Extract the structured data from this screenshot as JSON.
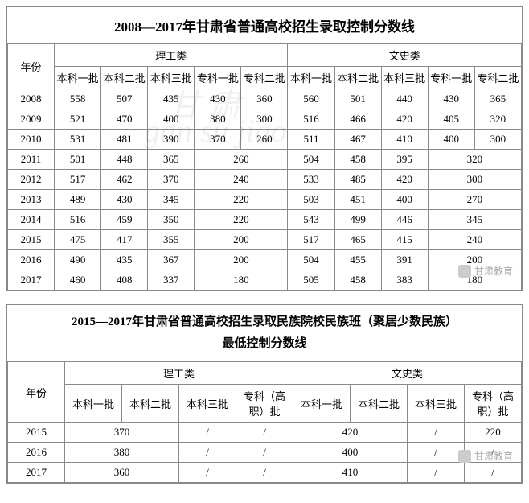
{
  "table1": {
    "title": "2008—2017年甘肃省普通高校招生录取控制分数线",
    "year_label": "年份",
    "group_sci": "理工类",
    "group_art": "文史类",
    "cols": [
      "本科一批",
      "本科二批",
      "本科三批",
      "专科一批",
      "专科二批"
    ],
    "rows": [
      {
        "year": "2008",
        "sci": [
          "558",
          "507",
          "435",
          "430",
          "360"
        ],
        "art": [
          "560",
          "501",
          "440",
          "430",
          "365"
        ]
      },
      {
        "year": "2009",
        "sci": [
          "521",
          "470",
          "400",
          "380",
          "300"
        ],
        "art": [
          "516",
          "466",
          "420",
          "405",
          "320"
        ]
      },
      {
        "year": "2010",
        "sci": [
          "531",
          "481",
          "390",
          "370",
          "260"
        ],
        "art": [
          "511",
          "467",
          "410",
          "400",
          "300"
        ]
      },
      {
        "year": "2011",
        "sci": [
          "501",
          "448",
          "365"
        ],
        "sci_m": "260",
        "art": [
          "504",
          "458",
          "395"
        ],
        "art_m": "320"
      },
      {
        "year": "2012",
        "sci": [
          "517",
          "462",
          "370"
        ],
        "sci_m": "240",
        "art": [
          "533",
          "485",
          "420"
        ],
        "art_m": "300"
      },
      {
        "year": "2013",
        "sci": [
          "489",
          "430",
          "345"
        ],
        "sci_m": "220",
        "art": [
          "503",
          "451",
          "400"
        ],
        "art_m": "270"
      },
      {
        "year": "2014",
        "sci": [
          "516",
          "459",
          "350"
        ],
        "sci_m": "220",
        "art": [
          "543",
          "499",
          "446"
        ],
        "art_m": "345"
      },
      {
        "year": "2015",
        "sci": [
          "475",
          "417",
          "355"
        ],
        "sci_m": "200",
        "art": [
          "517",
          "465",
          "415"
        ],
        "art_m": "240"
      },
      {
        "year": "2016",
        "sci": [
          "490",
          "435",
          "367"
        ],
        "sci_m": "200",
        "art": [
          "504",
          "455",
          "391"
        ],
        "art_m": "200"
      },
      {
        "year": "2017",
        "sci": [
          "460",
          "408",
          "337"
        ],
        "sci_m": "180",
        "art": [
          "505",
          "458",
          "383"
        ],
        "art_m": "180"
      }
    ]
  },
  "table2": {
    "title_l1": "2015—2017年甘肃省普通高校招生录取民族院校民族班（聚居少数民族）",
    "title_l2": "最低控制分数线",
    "year_label": "年份",
    "group_sci": "理工类",
    "group_art": "文史类",
    "cols": [
      "本科一批",
      "本科二批",
      "本科三批",
      "专科（高职）批"
    ],
    "rows": [
      {
        "year": "2015",
        "sci_m": "370",
        "sci3": "/",
        "sci4": "/",
        "art_m": "420",
        "art3": "/",
        "art4": "220"
      },
      {
        "year": "2016",
        "sci_m": "380",
        "sci3": "/",
        "sci4": "/",
        "art_m": "400",
        "art3": "/",
        "art4": "/"
      },
      {
        "year": "2017",
        "sci_m": "360",
        "sci3": "/",
        "sci4": "/",
        "art_m": "410",
        "art3": "/",
        "art4": "/"
      }
    ]
  },
  "watermark": {
    "l1": "甘 肃",
    "l2": "gan su jiao"
  },
  "brand": "甘肃教育"
}
